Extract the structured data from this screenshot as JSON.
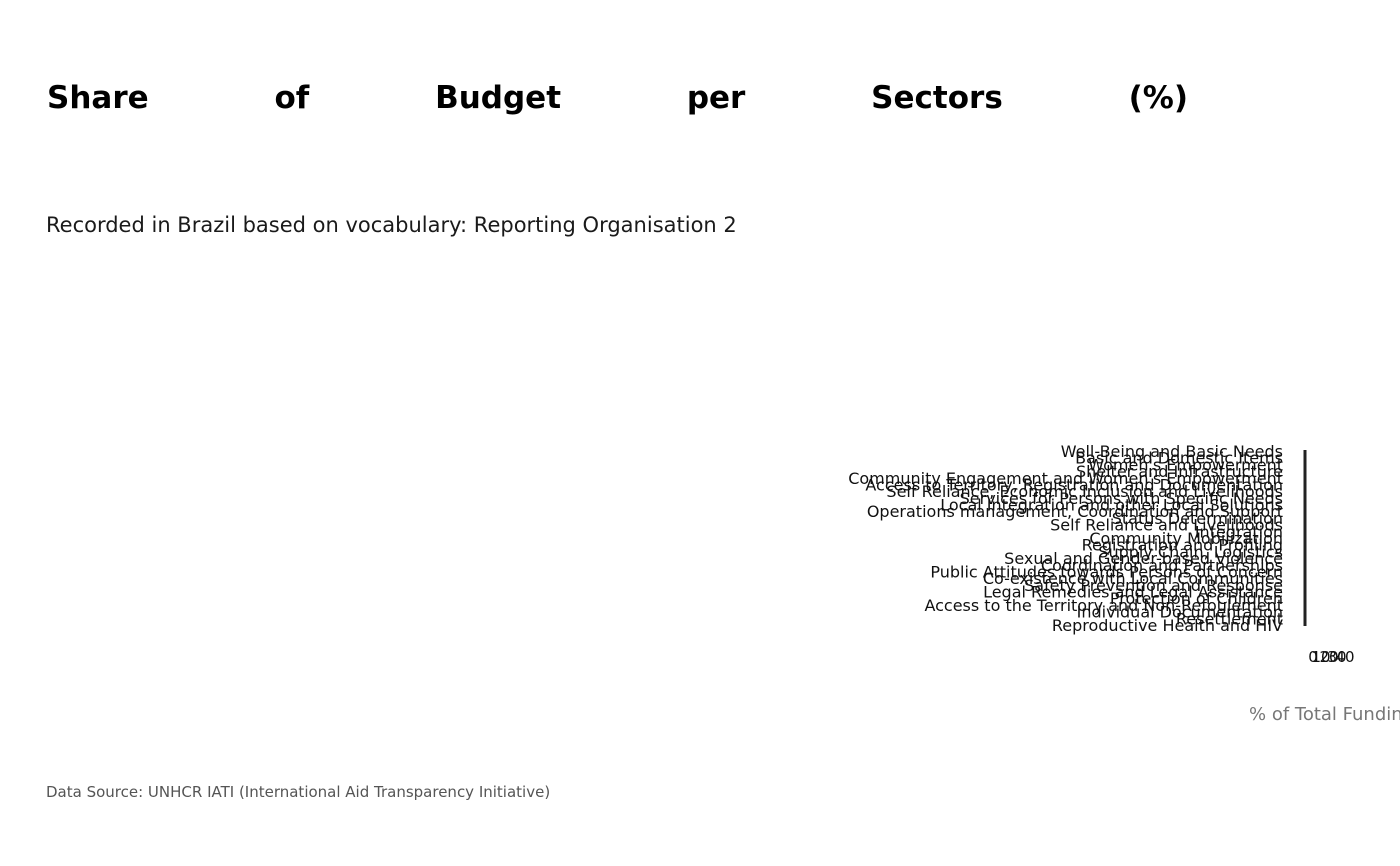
{
  "title": "Share of Budget per Sectors (%)",
  "subtitle": "Recorded in Brazil based on vocabulary: Reporting Organisation 2",
  "source": "Data Source: UNHCR IATI (International Aid Transparency Initiative)",
  "chart_data": {
    "type": "bar",
    "orientation": "horizontal",
    "title": "Share of Budget per Sectors (%)",
    "xlabel": "% of Total Funding",
    "ylabel": "",
    "categories": [
      "Well-Being and Basic Needs",
      "Basic and Domestic Items",
      "Women's Empowerment",
      "Shelter and Infrastructure",
      "Community Engagement and Women's Empowerment",
      "Access to Territory, Registration and Documentation",
      "Self Reliance, Economic Inclusion and Livelihoods",
      "Services for Persons with Specific Needs",
      "Local Integration and other Local Solutions",
      "Operations management, Coordination and Support",
      "Status Determination",
      "Self Reliance and Livelihoods",
      "Integration",
      "Community Mobilization",
      "Registration and Profiling",
      "Supply Chain, Logistics",
      "Sexual and Gender-based Violence",
      "Coordination and Partnerships",
      "Public Attitudes towards Persons of Concern",
      "Co-existence with Local Communities",
      "Safety Prevention and Response",
      "Legal Remedies and Legal Assistance",
      "Protection of Children",
      "Access to the Territory and Non-Refoulement",
      "Individual Documentation",
      "Resettlement",
      "Reproductive Health and HIV"
    ],
    "values": [
      0,
      0,
      0,
      0,
      0,
      0,
      0,
      0,
      0,
      0,
      0,
      0,
      0,
      0,
      0,
      0,
      0,
      0,
      0,
      0,
      0,
      0,
      0,
      0,
      0,
      0,
      0
    ],
    "x_tick_labels": [
      "0",
      "10",
      "20",
      "30",
      "40"
    ],
    "grid": false,
    "legend": "none",
    "colors": {
      "axis": "#222222",
      "bar": "#3b6fb6",
      "label": "#111111",
      "xlabel": "#777777"
    }
  }
}
